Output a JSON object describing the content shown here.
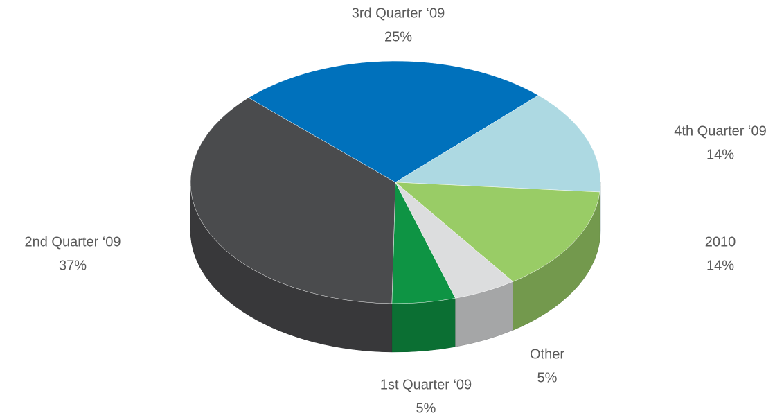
{
  "chart_data": {
    "type": "pie",
    "categories": [
      "1st Quarter ‘09",
      "2nd Quarter ‘09",
      "3rd Quarter ‘09",
      "4th Quarter ‘09",
      "2010",
      "Other"
    ],
    "values": [
      5,
      37,
      25,
      14,
      14,
      5
    ],
    "value_labels": [
      "5%",
      "37%",
      "25%",
      "14%",
      "14%",
      "5%"
    ],
    "colors": [
      "#0e9444",
      "#4a4b4d",
      "#0071bc",
      "#add9e2",
      "#99cc66",
      "#dcddde"
    ]
  }
}
